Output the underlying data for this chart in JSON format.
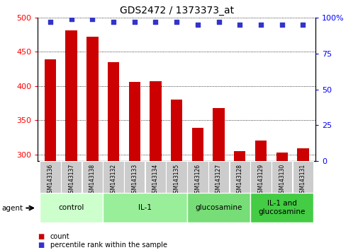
{
  "title": "GDS2472 / 1373373_at",
  "samples": [
    "GSM143136",
    "GSM143137",
    "GSM143138",
    "GSM143132",
    "GSM143133",
    "GSM143134",
    "GSM143135",
    "GSM143126",
    "GSM143127",
    "GSM143128",
    "GSM143129",
    "GSM143130",
    "GSM143131"
  ],
  "counts": [
    439,
    481,
    472,
    435,
    406,
    407,
    380,
    339,
    368,
    305,
    320,
    303,
    309
  ],
  "percentile_ranks": [
    97,
    99,
    99,
    97,
    97,
    97,
    97,
    95,
    97,
    95,
    95,
    95,
    95
  ],
  "ylim_left": [
    290,
    500
  ],
  "ylim_right": [
    0,
    100
  ],
  "yticks_left": [
    300,
    350,
    400,
    450,
    500
  ],
  "yticks_right": [
    0,
    25,
    50,
    75,
    100
  ],
  "bar_color": "#cc0000",
  "dot_color": "#3333cc",
  "bar_width": 0.55,
  "groups": [
    {
      "label": "control",
      "start": 0,
      "end": 3,
      "color": "#ccffcc"
    },
    {
      "label": "IL-1",
      "start": 3,
      "end": 7,
      "color": "#99ee99"
    },
    {
      "label": "glucosamine",
      "start": 7,
      "end": 10,
      "color": "#77dd77"
    },
    {
      "label": "IL-1 and\nglucosamine",
      "start": 10,
      "end": 13,
      "color": "#44cc44"
    }
  ],
  "background_color": "#ffffff",
  "legend_count_label": "count",
  "legend_pct_label": "percentile rank within the sample",
  "agent_label": "agent"
}
